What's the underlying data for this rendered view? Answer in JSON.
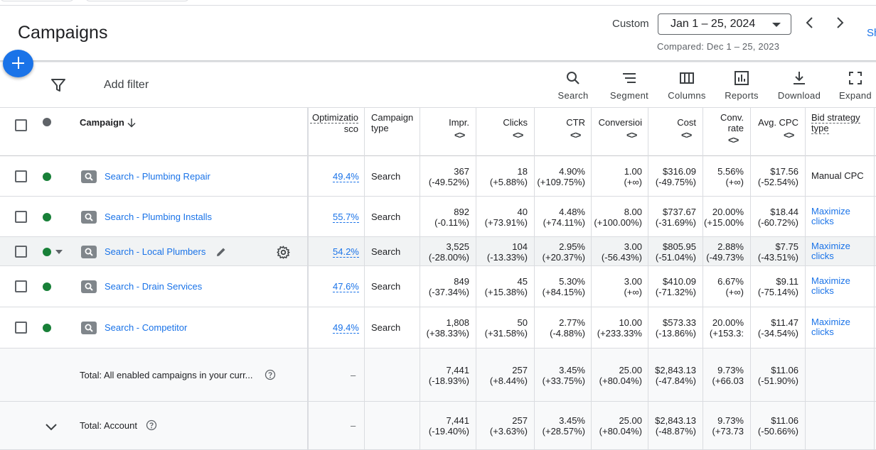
{
  "header": {
    "title": "Campaigns",
    "range_label": "Custom",
    "range_value": "Jan 1 – 25, 2024",
    "compared": "Compared: Dec 1 – 25, 2023",
    "show_link": "Sh"
  },
  "toolbar": {
    "add_filter": "Add filter",
    "tools": [
      "Search",
      "Segment",
      "Columns",
      "Reports",
      "Download",
      "Expand"
    ]
  },
  "columns": {
    "campaign": "Campaign",
    "opt_score_1": "Optimizatio",
    "opt_score_2": "sco",
    "campaign_type_1": "Campaign",
    "campaign_type_2": "type",
    "impr": "Impr.",
    "clicks": "Clicks",
    "ctr": "CTR",
    "conversions": "Conversioi",
    "cost": "Cost",
    "conv_rate_1": "Conv.",
    "conv_rate_2": "rate",
    "avg_cpc": "Avg. CPC",
    "bid_1": "Bid strategy",
    "bid_2": "type",
    "sort_arrows": "<>"
  },
  "rows": [
    {
      "name": "Search - Plumbing Repair",
      "opt": "49.4%",
      "type": "Search",
      "impr": [
        "367",
        "(-49.52%)"
      ],
      "clicks": [
        "18",
        "(+5.88%)"
      ],
      "ctr": [
        "4.90%",
        "(+109.75%)"
      ],
      "conv": [
        "1.00",
        "(+∞)"
      ],
      "cost": [
        "$316.09",
        "(-49.75%)"
      ],
      "rate": [
        "5.56%",
        "(+∞)"
      ],
      "cpc": [
        "$17.56",
        "(-52.54%)"
      ],
      "bid": [
        "Manual CPC",
        ""
      ]
    },
    {
      "name": "Search - Plumbing Installs",
      "opt": "55.7%",
      "type": "Search",
      "impr": [
        "892",
        "(-0.11%)"
      ],
      "clicks": [
        "40",
        "(+73.91%)"
      ],
      "ctr": [
        "4.48%",
        "(+74.11%)"
      ],
      "conv": [
        "8.00",
        "(+100.00%)"
      ],
      "cost": [
        "$737.67",
        "(-31.69%)"
      ],
      "rate": [
        "20.00%",
        "(+15.00%"
      ],
      "cpc": [
        "$18.44",
        "(-60.72%)"
      ],
      "bid": [
        "Maximize",
        "clicks"
      ]
    },
    {
      "name": "Search - Local Plumbers",
      "opt": "54.2%",
      "type": "Search",
      "impr": [
        "3,525",
        "(-28.00%)"
      ],
      "clicks": [
        "104",
        "(-13.33%)"
      ],
      "ctr": [
        "2.95%",
        "(+20.37%)"
      ],
      "conv": [
        "3.00",
        "(-56.43%)"
      ],
      "cost": [
        "$805.95",
        "(-51.04%)"
      ],
      "rate": [
        "2.88%",
        "(-49.73%"
      ],
      "cpc": [
        "$7.75",
        "(-43.51%)"
      ],
      "bid": [
        "Maximize",
        "clicks"
      ]
    },
    {
      "name": "Search - Drain Services",
      "opt": "47.6%",
      "type": "Search",
      "impr": [
        "849",
        "(-37.34%)"
      ],
      "clicks": [
        "45",
        "(+15.38%)"
      ],
      "ctr": [
        "5.30%",
        "(+84.15%)"
      ],
      "conv": [
        "3.00",
        "(+∞)"
      ],
      "cost": [
        "$410.09",
        "(-71.32%)"
      ],
      "rate": [
        "6.67%",
        "(+∞)"
      ],
      "cpc": [
        "$9.11",
        "(-75.14%)"
      ],
      "bid": [
        "Maximize",
        "clicks"
      ]
    },
    {
      "name": "Search - Competitor",
      "opt": "49.4%",
      "type": "Search",
      "impr": [
        "1,808",
        "(+38.33%)"
      ],
      "clicks": [
        "50",
        "(+31.58%)"
      ],
      "ctr": [
        "2.77%",
        "(-4.88%)"
      ],
      "conv": [
        "10.00",
        "(+233.33%"
      ],
      "cost": [
        "$573.33",
        "(-13.86%)"
      ],
      "rate": [
        "20.00%",
        "(+153.3:"
      ],
      "cpc": [
        "$11.47",
        "(-34.54%)"
      ],
      "bid": [
        "Maximize",
        "clicks"
      ]
    }
  ],
  "totals": [
    {
      "label": "Total: All enabled campaigns in your curr...",
      "opt": "–",
      "impr": [
        "7,441",
        "(-18.93%)"
      ],
      "clicks": [
        "257",
        "(+8.44%)"
      ],
      "ctr": [
        "3.45%",
        "(+33.75%)"
      ],
      "conv": [
        "25.00",
        "(+80.04%)"
      ],
      "cost": [
        "$2,843.13",
        "(-47.84%)"
      ],
      "rate": [
        "9.73%",
        "(+66.03"
      ],
      "cpc": [
        "$11.06",
        "(-51.90%)"
      ]
    },
    {
      "label": "Total: Account",
      "opt": "–",
      "impr": [
        "7,441",
        "(-19.40%)"
      ],
      "clicks": [
        "257",
        "(+3.63%)"
      ],
      "ctr": [
        "3.45%",
        "(+28.57%)"
      ],
      "conv": [
        "25.00",
        "(+80.04%)"
      ],
      "cost": [
        "$2,843.13",
        "(-48.87%)"
      ],
      "rate": [
        "9.73%",
        "(+73.73"
      ],
      "cpc": [
        "$11.06",
        "(-50.66%)"
      ]
    }
  ],
  "colors": {
    "accent": "#1a73e8",
    "enabled": "#188038",
    "border": "#dadce0"
  }
}
